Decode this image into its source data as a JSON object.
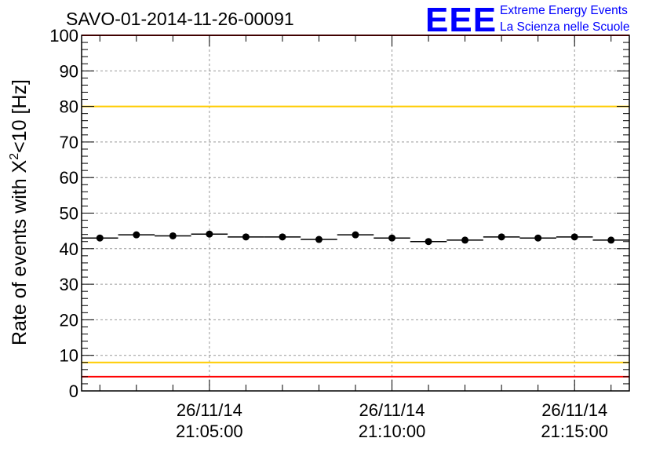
{
  "chart_data": {
    "type": "scatter",
    "title": "SAVO-01-2014-11-26-00091",
    "ylabel": "Rate of events with X",
    "ylabel_sup": "2",
    "ylabel_rest": "<10 [Hz]",
    "xlabel": "",
    "ylim": [
      0,
      100
    ],
    "yticks": [
      0,
      10,
      20,
      30,
      40,
      50,
      60,
      70,
      80,
      90,
      100
    ],
    "x_ticks": [
      {
        "date": "26/11/14",
        "time": "21:05:00",
        "minute": 5
      },
      {
        "date": "26/11/14",
        "time": "21:10:00",
        "minute": 10
      },
      {
        "date": "26/11/14",
        "time": "21:15:00",
        "minute": 15
      }
    ],
    "xlim_minutes_after_21h": [
      1.5,
      16.5
    ],
    "bin_width_minutes": 1,
    "points": [
      {
        "x": 2,
        "y": 43.0
      },
      {
        "x": 3,
        "y": 43.9
      },
      {
        "x": 4,
        "y": 43.6
      },
      {
        "x": 5,
        "y": 44.1
      },
      {
        "x": 6,
        "y": 43.3
      },
      {
        "x": 7,
        "y": 43.3
      },
      {
        "x": 8,
        "y": 42.6
      },
      {
        "x": 9,
        "y": 43.9
      },
      {
        "x": 10,
        "y": 43.0
      },
      {
        "x": 11,
        "y": 42.0
      },
      {
        "x": 12,
        "y": 42.4
      },
      {
        "x": 13,
        "y": 43.3
      },
      {
        "x": 14,
        "y": 43.0
      },
      {
        "x": 15,
        "y": 43.3
      },
      {
        "x": 16,
        "y": 42.4
      }
    ],
    "reference_lines": [
      {
        "y": 100,
        "color": "#ff0000"
      },
      {
        "y": 80,
        "color": "#ffcc00"
      },
      {
        "y": 8,
        "color": "#ffcc00"
      },
      {
        "y": 4,
        "color": "#ff0000"
      }
    ],
    "grid": true,
    "marker_color": "#000000"
  },
  "logo": {
    "mark": "EEE",
    "line1": "Extreme Energy Events",
    "line2": "La Scienza nelle Scuole",
    "color": "#0000ff"
  }
}
